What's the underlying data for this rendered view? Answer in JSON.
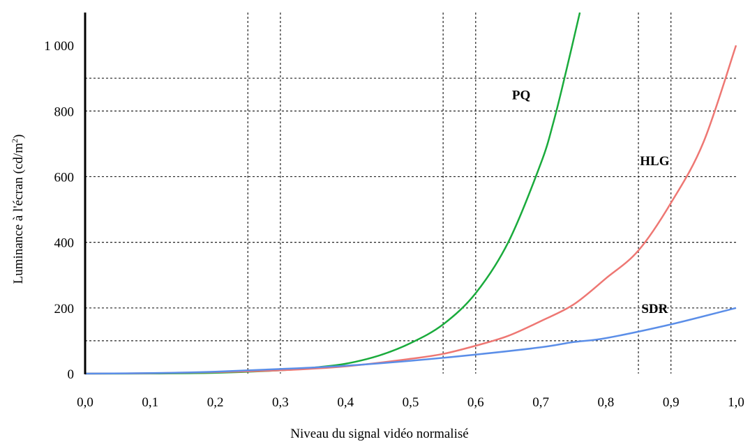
{
  "chart_data": {
    "type": "line",
    "title": "",
    "xlabel": "Niveau du signal vidéo normalisé",
    "ylabel": "Luminance à l'écran (cd/m²)",
    "ylabel_main": "Luminance à l'écran (cd/m",
    "ylabel_sup": "2",
    "ylabel_end": ")",
    "xlim": [
      0.0,
      1.0
    ],
    "ylim": [
      0,
      1100
    ],
    "x_ticks": [
      0.0,
      0.1,
      0.2,
      0.3,
      0.4,
      0.5,
      0.6,
      0.7,
      0.8,
      0.9,
      1.0
    ],
    "x_tick_labels": [
      "0,0",
      "0,1",
      "0,2",
      "0,3",
      "0,4",
      "0,5",
      "0,6",
      "0,7",
      "0,8",
      "0,9",
      "1,0"
    ],
    "y_ticks": [
      0,
      200,
      400,
      600,
      800,
      1000
    ],
    "y_tick_labels": [
      "0",
      "200",
      "400",
      "600",
      "800",
      "1 000"
    ],
    "grid_x": [
      0.25,
      0.3,
      0.55,
      0.6,
      0.85,
      0.9
    ],
    "grid_y": [
      100,
      200,
      400,
      600,
      800,
      900
    ],
    "legend": "none",
    "series": [
      {
        "name": "PQ",
        "color": "#1aab3c",
        "x": [
          0.0,
          0.1,
          0.2,
          0.3,
          0.35,
          0.4,
          0.45,
          0.5,
          0.55,
          0.6,
          0.65,
          0.7,
          0.72,
          0.74,
          0.76
        ],
        "values": [
          0,
          0.3,
          2.4,
          10,
          18,
          30,
          54,
          93,
          150,
          245,
          400,
          640,
          770,
          930,
          1100
        ]
      },
      {
        "name": "HLG",
        "color": "#ee7773",
        "x": [
          0.0,
          0.1,
          0.2,
          0.3,
          0.4,
          0.5,
          0.55,
          0.6,
          0.65,
          0.7,
          0.75,
          0.8,
          0.85,
          0.9,
          0.95,
          1.0
        ],
        "values": [
          0,
          1,
          4.5,
          10,
          22,
          45,
          60,
          85,
          115,
          160,
          210,
          290,
          375,
          520,
          705,
          1000
        ]
      },
      {
        "name": "SDR",
        "color": "#5b8ee8",
        "x": [
          0.0,
          0.1,
          0.2,
          0.3,
          0.4,
          0.5,
          0.6,
          0.7,
          0.75,
          0.8,
          0.9,
          1.0
        ],
        "values": [
          0,
          1.5,
          6,
          14,
          24,
          39,
          58,
          80,
          96,
          108,
          150,
          200
        ]
      }
    ],
    "annotations": [
      {
        "text": "PQ",
        "x": 0.67,
        "y": 850
      },
      {
        "text": "HLG",
        "x": 0.875,
        "y": 650
      },
      {
        "text": "SDR",
        "x": 0.875,
        "y": 200
      }
    ]
  }
}
